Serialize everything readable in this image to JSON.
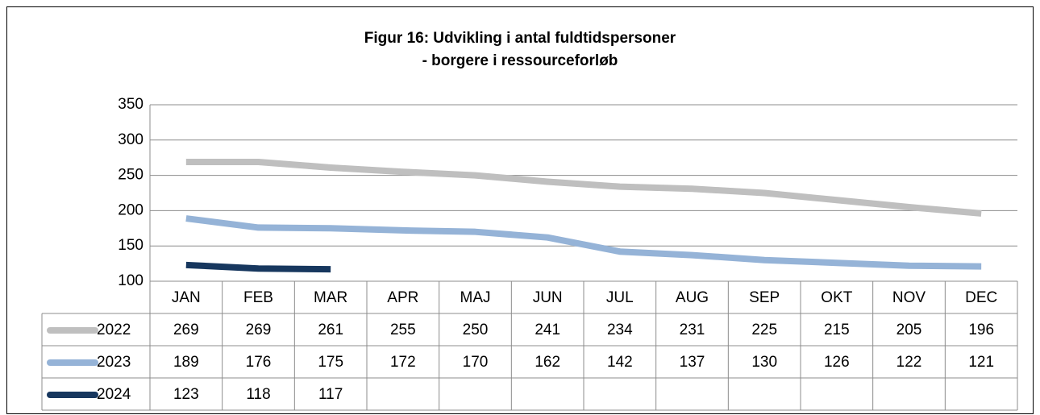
{
  "chart_data": {
    "type": "line",
    "title": "Figur 16: Udvikling i antal fuldtidspersoner",
    "subtitle": "- borgere i ressourceforløb",
    "categories": [
      "JAN",
      "FEB",
      "MAR",
      "APR",
      "MAJ",
      "JUN",
      "JUL",
      "AUG",
      "SEP",
      "OKT",
      "NOV",
      "DEC"
    ],
    "series": [
      {
        "name": "2022",
        "color": "#bfbfbf",
        "values": [
          269,
          269,
          261,
          255,
          250,
          241,
          234,
          231,
          225,
          215,
          205,
          196
        ]
      },
      {
        "name": "2023",
        "color": "#95b3d7",
        "values": [
          189,
          176,
          175,
          172,
          170,
          162,
          142,
          137,
          130,
          126,
          122,
          121
        ]
      },
      {
        "name": "2024",
        "color": "#17375e",
        "values": [
          123,
          118,
          117,
          null,
          null,
          null,
          null,
          null,
          null,
          null,
          null,
          null
        ]
      }
    ],
    "ylim": [
      100,
      350
    ],
    "yticks": [
      100,
      150,
      200,
      250,
      300,
      350
    ],
    "grid": true
  }
}
